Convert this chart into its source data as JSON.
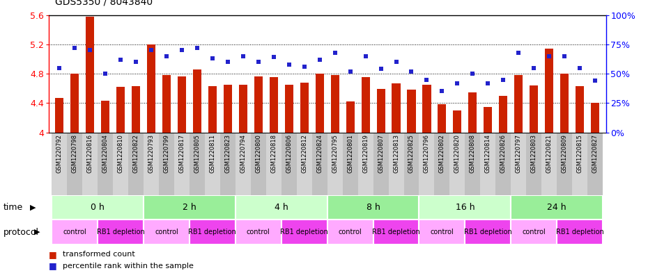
{
  "title": "GDS5350 / 8043840",
  "samples": [
    "GSM1220792",
    "GSM1220798",
    "GSM1220816",
    "GSM1220804",
    "GSM1220810",
    "GSM1220822",
    "GSM1220793",
    "GSM1220799",
    "GSM1220817",
    "GSM1220805",
    "GSM1220811",
    "GSM1220823",
    "GSM1220794",
    "GSM1220800",
    "GSM1220818",
    "GSM1220806",
    "GSM1220812",
    "GSM1220824",
    "GSM1220795",
    "GSM1220801",
    "GSM1220819",
    "GSM1220807",
    "GSM1220813",
    "GSM1220825",
    "GSM1220796",
    "GSM1220802",
    "GSM1220820",
    "GSM1220808",
    "GSM1220814",
    "GSM1220826",
    "GSM1220797",
    "GSM1220803",
    "GSM1220821",
    "GSM1220809",
    "GSM1220815",
    "GSM1220827"
  ],
  "bar_values": [
    4.47,
    4.8,
    5.58,
    4.43,
    4.62,
    4.63,
    5.2,
    4.78,
    4.76,
    4.86,
    4.63,
    4.65,
    4.65,
    4.76,
    4.75,
    4.65,
    4.68,
    4.8,
    4.78,
    4.42,
    4.75,
    4.59,
    4.67,
    4.58,
    4.65,
    4.38,
    4.3,
    4.55,
    4.35,
    4.5,
    4.78,
    4.64,
    5.14,
    4.8,
    4.63,
    4.4
  ],
  "percentile_values": [
    55,
    72,
    70,
    50,
    62,
    60,
    70,
    65,
    70,
    72,
    63,
    60,
    65,
    60,
    64,
    58,
    56,
    62,
    68,
    52,
    65,
    54,
    60,
    52,
    45,
    35,
    42,
    50,
    42,
    45,
    68,
    55,
    65,
    65,
    55,
    44
  ],
  "y_min": 4.0,
  "y_max": 5.6,
  "y_ticks": [
    4.0,
    4.4,
    4.8,
    5.2,
    5.6
  ],
  "y_tick_labels": [
    "4",
    "4.4",
    "4.8",
    "5.2",
    "5.6"
  ],
  "right_y_ticks": [
    0,
    25,
    50,
    75,
    100
  ],
  "right_y_labels": [
    "0%",
    "25%",
    "50%",
    "75%",
    "100%"
  ],
  "time_groups": [
    {
      "label": "0 h",
      "start": 0,
      "end": 6
    },
    {
      "label": "2 h",
      "start": 6,
      "end": 12
    },
    {
      "label": "4 h",
      "start": 12,
      "end": 18
    },
    {
      "label": "8 h",
      "start": 18,
      "end": 24
    },
    {
      "label": "16 h",
      "start": 24,
      "end": 30
    },
    {
      "label": "24 h",
      "start": 30,
      "end": 36
    }
  ],
  "time_colors": [
    "#ccffcc",
    "#99ee99",
    "#ccffcc",
    "#99ee99",
    "#ccffcc",
    "#99ee99"
  ],
  "protocol_groups": [
    {
      "label": "control",
      "start": 0,
      "end": 3
    },
    {
      "label": "RB1 depletion",
      "start": 3,
      "end": 6
    },
    {
      "label": "control",
      "start": 6,
      "end": 9
    },
    {
      "label": "RB1 depletion",
      "start": 9,
      "end": 12
    },
    {
      "label": "control",
      "start": 12,
      "end": 15
    },
    {
      "label": "RB1 depletion",
      "start": 15,
      "end": 18
    },
    {
      "label": "control",
      "start": 18,
      "end": 21
    },
    {
      "label": "RB1 depletion",
      "start": 21,
      "end": 24
    },
    {
      "label": "control",
      "start": 24,
      "end": 27
    },
    {
      "label": "RB1 depletion",
      "start": 27,
      "end": 30
    },
    {
      "label": "control",
      "start": 30,
      "end": 33
    },
    {
      "label": "RB1 depletion",
      "start": 33,
      "end": 36
    }
  ],
  "control_color": "#ffaaff",
  "depletion_color": "#ee44ee",
  "bar_color": "#cc2200",
  "dot_color": "#2222cc",
  "sample_bg_even": "#d4d4d4",
  "sample_bg_odd": "#c0c0c0",
  "grid_yticks": [
    4.4,
    4.8,
    5.2
  ],
  "background_color": "#ffffff"
}
